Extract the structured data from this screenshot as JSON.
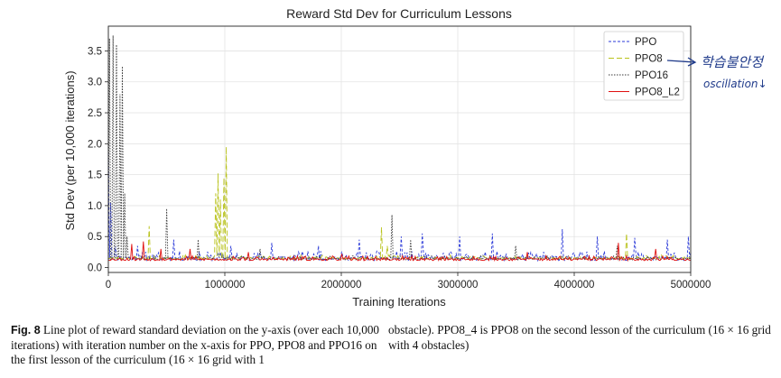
{
  "chart_data": {
    "type": "line",
    "title": "Reward Std Dev for Curriculum Lessons",
    "xlabel": "Training Iterations",
    "ylabel": "Std Dev (per 10,000 iterations)",
    "xlim": [
      0,
      5000000
    ],
    "ylim": [
      -0.08,
      3.9
    ],
    "x_ticks": [
      "0",
      "1000000",
      "2000000",
      "3000000",
      "4000000",
      "5000000"
    ],
    "y_ticks": [
      "0.0",
      "0.5",
      "1.0",
      "1.5",
      "2.0",
      "2.5",
      "3.0",
      "3.5"
    ],
    "grid": true,
    "legend_position": "top-right",
    "series": [
      {
        "name": "PPO",
        "color": "#2b3ad8",
        "dash": "3,2",
        "baseline": 0.15,
        "noise": 0.14,
        "seed": 11,
        "spikes": [
          [
            0,
            1.85
          ],
          [
            20000,
            1.05
          ],
          [
            60000,
            0.35
          ],
          [
            250000,
            0.35
          ],
          [
            560000,
            0.45
          ],
          [
            1050000,
            0.35
          ],
          [
            1400000,
            0.4
          ],
          [
            1800000,
            0.35
          ],
          [
            2150000,
            0.45
          ],
          [
            2520000,
            0.5
          ],
          [
            2700000,
            0.55
          ],
          [
            3020000,
            0.5
          ],
          [
            3300000,
            0.55
          ],
          [
            3900000,
            0.62
          ],
          [
            4200000,
            0.5
          ],
          [
            4520000,
            0.48
          ],
          [
            4800000,
            0.45
          ],
          [
            4980000,
            0.5
          ]
        ]
      },
      {
        "name": "PPO8",
        "color": "#b8c21a",
        "dash": "6,3",
        "baseline": 0.15,
        "noise": 0.06,
        "seed": 23,
        "spikes": [
          [
            350000,
            0.67
          ],
          [
            920000,
            1.2
          ],
          [
            940000,
            1.52
          ],
          [
            960000,
            1.1
          ],
          [
            990000,
            1.45
          ],
          [
            1010000,
            1.95
          ],
          [
            2340000,
            0.65
          ],
          [
            2390000,
            0.35
          ],
          [
            4450000,
            0.55
          ]
        ]
      },
      {
        "name": "PPO16",
        "color": "#3a3a3a",
        "dash": "1.5,1.5",
        "baseline": 0.14,
        "noise": 0.06,
        "seed": 37,
        "spikes": [
          [
            10000,
            3.7
          ],
          [
            40000,
            3.75
          ],
          [
            70000,
            3.6
          ],
          [
            100000,
            2.8
          ],
          [
            120000,
            3.25
          ],
          [
            140000,
            1.2
          ],
          [
            160000,
            0.5
          ],
          [
            500000,
            0.95
          ],
          [
            770000,
            0.45
          ],
          [
            1300000,
            0.3
          ],
          [
            2430000,
            0.85
          ],
          [
            2600000,
            0.45
          ],
          [
            3500000,
            0.35
          ],
          [
            4370000,
            0.35
          ]
        ]
      },
      {
        "name": "PPO8_L2",
        "color": "#e01010",
        "dash": "",
        "baseline": 0.13,
        "noise": 0.07,
        "seed": 53,
        "spikes": [
          [
            200000,
            0.38
          ],
          [
            300000,
            0.42
          ],
          [
            450000,
            0.3
          ],
          [
            700000,
            0.3
          ],
          [
            1200000,
            0.25
          ],
          [
            2000000,
            0.22
          ],
          [
            3600000,
            0.25
          ],
          [
            4380000,
            0.4
          ],
          [
            4700000,
            0.3
          ]
        ]
      }
    ]
  },
  "annotation": {
    "korean": "학습불안정",
    "english": "oscillation↓"
  },
  "caption": {
    "label": "Fig. 8",
    "left": "Line plot of reward standard deviation on the y-axis (over each 10,000 iterations) with iteration number on the x-axis for PPO, PPO8 and PPO16 on the first lesson of the curriculum (16 × 16 grid with 1",
    "right": "obstacle). PPO8_4 is PPO8 on the second lesson of the curriculum (16 × 16 grid with 4 obstacles)"
  }
}
